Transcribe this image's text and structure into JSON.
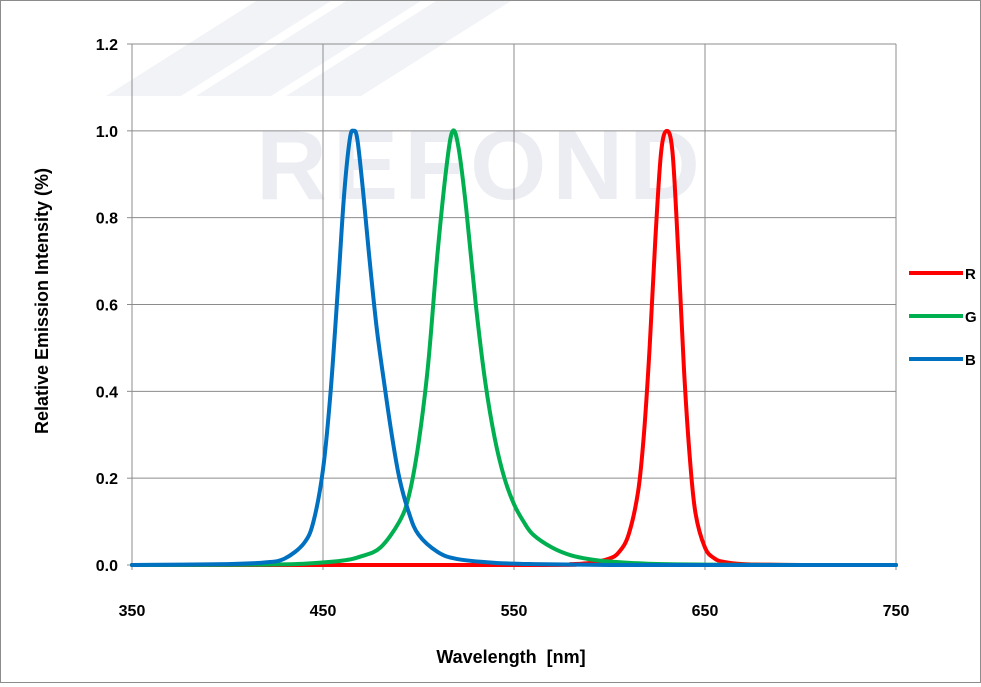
{
  "chart_data": {
    "type": "line",
    "title": "",
    "xlabel": "Wavelength  [nm]",
    "ylabel": "Relative Emission Intensity (%)",
    "xlim": [
      350,
      750
    ],
    "ylim": [
      0.0,
      1.2
    ],
    "x_ticks": [
      350,
      450,
      550,
      650,
      750
    ],
    "x_tick_labels": [
      "350",
      "450",
      "550",
      "650",
      "750"
    ],
    "y_ticks": [
      0.0,
      0.2,
      0.4,
      0.6,
      0.8,
      1.0,
      1.2
    ],
    "y_tick_labels": [
      "0.0",
      "0.2",
      "0.4",
      "0.6",
      "0.8",
      "1.0",
      "1.2"
    ],
    "grid": true,
    "legend_position": "right",
    "watermark": "REFOND",
    "series": [
      {
        "name": "R",
        "color": "#ff0000",
        "x": [
          350,
          560,
          580,
          590,
          600,
          605,
          610,
          615,
          618,
          621,
          624,
          627,
          630,
          633,
          636,
          639,
          642,
          645,
          650,
          655,
          660,
          670,
          680,
          700,
          750
        ],
        "y": [
          0.0,
          0.0,
          0.002,
          0.005,
          0.015,
          0.03,
          0.07,
          0.17,
          0.3,
          0.5,
          0.75,
          0.95,
          1.0,
          0.95,
          0.72,
          0.45,
          0.25,
          0.12,
          0.04,
          0.015,
          0.007,
          0.002,
          0.001,
          0.0,
          0.0
        ]
      },
      {
        "name": "G",
        "color": "#00b050",
        "x": [
          350,
          420,
          440,
          460,
          470,
          480,
          490,
          495,
          500,
          505,
          510,
          515,
          518,
          521,
          525,
          530,
          535,
          540,
          545,
          550,
          555,
          560,
          570,
          580,
          590,
          600,
          620,
          650,
          700,
          750
        ],
        "y": [
          0.0,
          0.001,
          0.003,
          0.01,
          0.02,
          0.04,
          0.1,
          0.16,
          0.28,
          0.46,
          0.72,
          0.93,
          1.0,
          0.96,
          0.82,
          0.6,
          0.42,
          0.29,
          0.2,
          0.14,
          0.1,
          0.07,
          0.04,
          0.022,
          0.013,
          0.008,
          0.003,
          0.001,
          0.0,
          0.0
        ]
      },
      {
        "name": "B",
        "color": "#0070c0",
        "x": [
          350,
          400,
          420,
          430,
          440,
          445,
          450,
          454,
          458,
          461,
          464,
          466,
          468,
          471,
          474,
          478,
          482,
          486,
          490,
          495,
          500,
          510,
          520,
          540,
          560,
          600,
          650,
          750
        ],
        "y": [
          0.0,
          0.002,
          0.006,
          0.015,
          0.05,
          0.1,
          0.22,
          0.4,
          0.65,
          0.85,
          0.98,
          1.0,
          0.98,
          0.86,
          0.72,
          0.55,
          0.42,
          0.3,
          0.2,
          0.12,
          0.07,
          0.03,
          0.014,
          0.005,
          0.002,
          0.0,
          0.0,
          0.0
        ]
      }
    ]
  }
}
